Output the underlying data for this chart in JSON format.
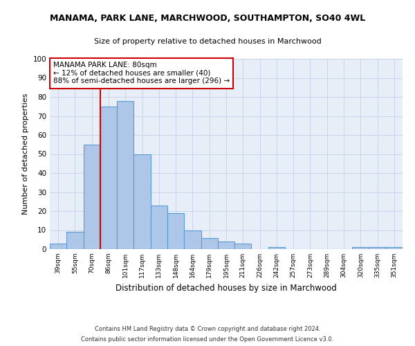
{
  "title1": "MANAMA, PARK LANE, MARCHWOOD, SOUTHAMPTON, SO40 4WL",
  "title2": "Size of property relative to detached houses in Marchwood",
  "xlabel": "Distribution of detached houses by size in Marchwood",
  "ylabel": "Number of detached properties",
  "categories": [
    "39sqm",
    "55sqm",
    "70sqm",
    "86sqm",
    "101sqm",
    "117sqm",
    "133sqm",
    "148sqm",
    "164sqm",
    "179sqm",
    "195sqm",
    "211sqm",
    "226sqm",
    "242sqm",
    "257sqm",
    "273sqm",
    "289sqm",
    "304sqm",
    "320sqm",
    "335sqm",
    "351sqm"
  ],
  "values": [
    3,
    9,
    55,
    75,
    78,
    50,
    23,
    19,
    10,
    6,
    4,
    3,
    0,
    1,
    0,
    0,
    0,
    0,
    1,
    1,
    1
  ],
  "bar_color": "#aec6e8",
  "bar_edge_color": "#5b9bd5",
  "vline_x": 2.5,
  "vline_color": "#cc0000",
  "annotation_text": "MANAMA PARK LANE: 80sqm\n← 12% of detached houses are smaller (40)\n88% of semi-detached houses are larger (296) →",
  "annotation_box_color": "#ffffff",
  "annotation_box_edge": "#cc0000",
  "ylim": [
    0,
    100
  ],
  "yticks": [
    0,
    10,
    20,
    30,
    40,
    50,
    60,
    70,
    80,
    90,
    100
  ],
  "grid_color": "#c8d4e8",
  "bg_color": "#e8eef8",
  "footer1": "Contains HM Land Registry data © Crown copyright and database right 2024.",
  "footer2": "Contains public sector information licensed under the Open Government Licence v3.0."
}
